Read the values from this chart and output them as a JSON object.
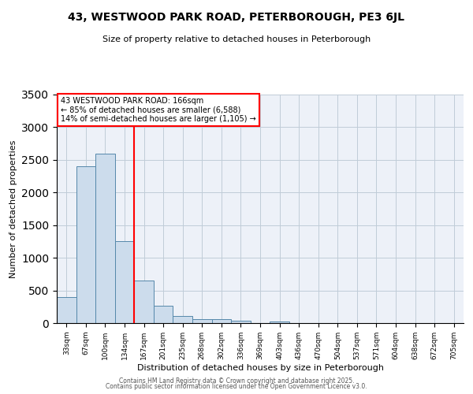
{
  "title": "43, WESTWOOD PARK ROAD, PETERBOROUGH, PE3 6JL",
  "subtitle": "Size of property relative to detached houses in Peterborough",
  "xlabel": "Distribution of detached houses by size in Peterborough",
  "ylabel": "Number of detached properties",
  "bar_color": "#ccdcec",
  "bar_edge_color": "#5588aa",
  "bin_labels": [
    "33sqm",
    "67sqm",
    "100sqm",
    "134sqm",
    "167sqm",
    "201sqm",
    "235sqm",
    "268sqm",
    "302sqm",
    "336sqm",
    "369sqm",
    "403sqm",
    "436sqm",
    "470sqm",
    "504sqm",
    "537sqm",
    "571sqm",
    "604sqm",
    "638sqm",
    "672sqm",
    "705sqm"
  ],
  "bar_heights": [
    400,
    2400,
    2600,
    1250,
    650,
    260,
    110,
    65,
    55,
    40,
    0,
    30,
    0,
    0,
    0,
    0,
    0,
    0,
    0,
    0,
    0
  ],
  "red_line_x": 4,
  "annotation_title": "43 WESTWOOD PARK ROAD: 166sqm",
  "annotation_line2": "← 85% of detached houses are smaller (6,588)",
  "annotation_line3": "14% of semi-detached houses are larger (1,105) →",
  "ylim": [
    0,
    3500
  ],
  "yticks": [
    0,
    500,
    1000,
    1500,
    2000,
    2500,
    3000,
    3500
  ],
  "grid_color": "#c0ccd8",
  "bg_color": "#edf1f8",
  "footer1": "Contains HM Land Registry data © Crown copyright and database right 2025.",
  "footer2": "Contains public sector information licensed under the Open Government Licence v3.0."
}
